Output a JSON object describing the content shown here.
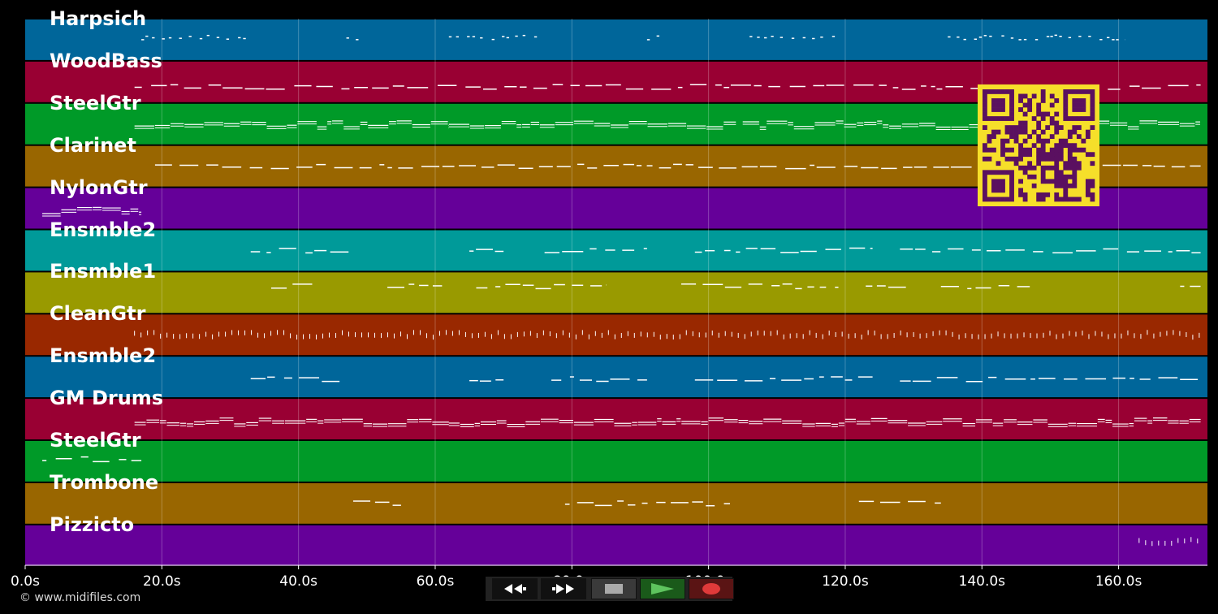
{
  "app": {
    "copyright": "© www.midifiles.com"
  },
  "timeline": {
    "tick_labels": [
      "0.0s",
      "20.0s",
      "40.0s",
      "60.0s",
      "80.0s",
      "100.0s",
      "120.0s",
      "140.0s",
      "160.0s"
    ],
    "tick_values_s": [
      0,
      20,
      40,
      60,
      80,
      100,
      120,
      140,
      160
    ],
    "max_s": 173
  },
  "tracks": [
    {
      "name": "Harpsich",
      "color": "#00669a"
    },
    {
      "name": "WoodBass",
      "color": "#990033"
    },
    {
      "name": "SteelGtr",
      "color": "#009a28"
    },
    {
      "name": "Clarinet",
      "color": "#996600"
    },
    {
      "name": "NylonGtr",
      "color": "#650099"
    },
    {
      "name": "Ensmble2",
      "color": "#009a99"
    },
    {
      "name": "Ensmble1",
      "color": "#999a00"
    },
    {
      "name": "CleanGtr",
      "color": "#992800"
    },
    {
      "name": "Ensmble2",
      "color": "#00669a"
    },
    {
      "name": "GM Drums",
      "color": "#990033"
    },
    {
      "name": "SteelGtr",
      "color": "#009a28"
    },
    {
      "name": "Trombone",
      "color": "#996600"
    },
    {
      "name": "Pizzicto",
      "color": "#650099"
    }
  ],
  "transport": {
    "rewind_icon": "rewind-icon",
    "forward_icon": "fast-forward-icon",
    "stop_icon": "stop-icon",
    "play_icon": "play-icon",
    "record_icon": "record-icon"
  },
  "qr_icon": "qr-code-icon"
}
